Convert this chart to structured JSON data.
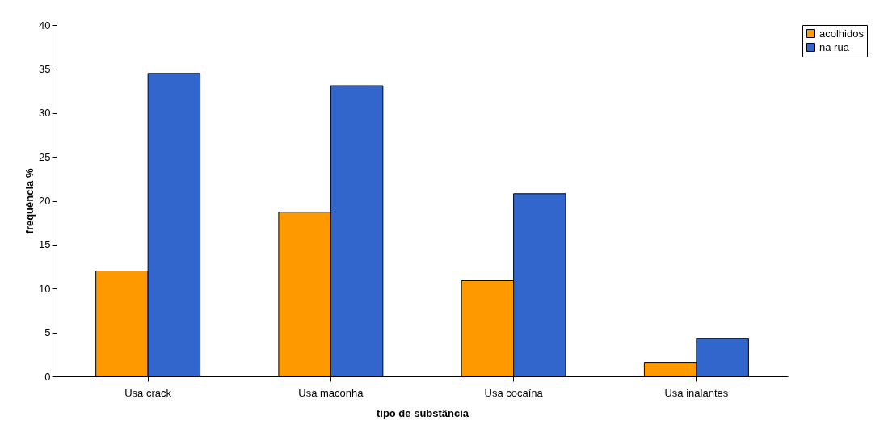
{
  "chart_data": {
    "type": "bar",
    "xlabel": "tipo de substância",
    "ylabel": "frequência %",
    "categories": [
      "Usa crack",
      "Usa maconha",
      "Usa cocaína",
      "Usa inalantes"
    ],
    "series": [
      {
        "name": "acolhidos",
        "color": "#ff9900",
        "values": [
          12,
          18.7,
          10.9,
          1.6
        ]
      },
      {
        "name": "na rua",
        "color": "#3366cc",
        "values": [
          34.5,
          33.1,
          20.8,
          4.3
        ]
      }
    ],
    "ylim": [
      0,
      40
    ],
    "yticks": [
      0,
      5,
      10,
      15,
      20,
      25,
      30,
      35,
      40
    ],
    "grid": false,
    "legend": "right"
  }
}
